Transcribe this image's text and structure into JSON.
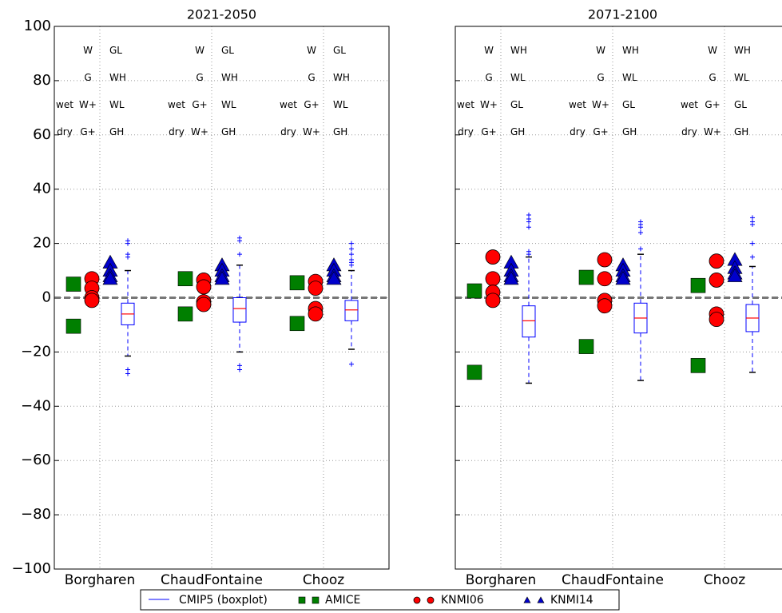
{
  "chart_data": [
    {
      "type": "box",
      "title": "2021-2050",
      "categories": [
        "Borgharen",
        "ChaudFontaine",
        "Chooz"
      ],
      "ylim": [
        -100,
        100
      ],
      "yticks": [
        {
          "value": -100,
          "label": "−100"
        },
        {
          "value": -80,
          "label": "−80"
        },
        {
          "value": -60,
          "label": "−60"
        },
        {
          "value": -40,
          "label": "−40"
        },
        {
          "value": -20,
          "label": "−20"
        },
        0,
        20,
        40,
        60,
        80,
        100
      ],
      "grid": true,
      "hline": 0,
      "series": [
        {
          "name": "AMICE",
          "color": "#007f00",
          "marker": "square",
          "values": [
            [
              5,
              -10.5
            ],
            [
              7,
              -6
            ],
            [
              5.5,
              -9.5
            ]
          ]
        },
        {
          "name": "KNMI06",
          "color": "#ff0000",
          "marker": "circle",
          "values": [
            [
              7,
              3.5,
              0,
              -1
            ],
            [
              6.5,
              4,
              -1.5,
              -2.5
            ],
            [
              6,
              3.5,
              -4,
              -6
            ]
          ]
        },
        {
          "name": "KNMI14",
          "color": "#0000cc",
          "marker": "triangle",
          "values": [
            [
              13,
              10,
              8,
              7
            ],
            [
              12,
              10,
              8,
              7
            ],
            [
              12,
              10,
              8,
              7
            ]
          ]
        }
      ],
      "boxes": {
        "name": "CMIP5 (boxplot)",
        "color": "#0000ff",
        "median_color": "#ff0000",
        "median": [
          -6,
          -4,
          -4.5
        ],
        "q1": [
          -10,
          -9,
          -8.5
        ],
        "q3": [
          -2,
          0,
          -1
        ],
        "whislo": [
          -21.5,
          -20,
          -19
        ],
        "whishi": [
          10,
          12,
          10
        ],
        "fliers": [
          [
            21,
            20,
            16,
            15,
            -26.5,
            -28
          ],
          [
            22,
            21,
            16,
            -25,
            -26.5
          ],
          [
            20,
            18,
            16,
            14,
            13,
            12,
            -24.5
          ]
        ]
      },
      "labels": [
        {
          "a": [
            "W",
            "G",
            "W+",
            "G+"
          ],
          "b": [
            "wet",
            "dry"
          ],
          "c": [
            "GL",
            "WH",
            "WL",
            "GH"
          ]
        },
        {
          "a": [
            "W",
            "G",
            "G+",
            "W+"
          ],
          "b": [
            "wet",
            "dry"
          ],
          "c": [
            "GL",
            "WH",
            "WL",
            "GH"
          ]
        },
        {
          "a": [
            "W",
            "G",
            "G+",
            "W+"
          ],
          "b": [
            "wet",
            "dry"
          ],
          "c": [
            "GL",
            "WH",
            "WL",
            "GH"
          ]
        }
      ]
    },
    {
      "type": "box",
      "title": "2071-2100",
      "categories": [
        "Borgharen",
        "ChaudFontaine",
        "Chooz"
      ],
      "ylim": [
        -100,
        100
      ],
      "yticks": [
        -100,
        -80,
        -60,
        -40,
        -20,
        0,
        20,
        40,
        60,
        80,
        100
      ],
      "grid": true,
      "hline": 0,
      "series": [
        {
          "color": "#007f00",
          "marker": "square",
          "values": [
            [
              2.5,
              -27.5
            ],
            [
              7.5,
              -18
            ],
            [
              4.5,
              -25
            ]
          ]
        },
        {
          "color": "#ff0000",
          "marker": "circle",
          "values": [
            [
              15,
              7,
              2,
              -1
            ],
            [
              14,
              7,
              -1,
              -3
            ],
            [
              13.5,
              6.5,
              -6,
              -8
            ]
          ]
        },
        {
          "color": "#0000cc",
          "marker": "triangle",
          "values": [
            [
              13,
              10,
              8,
              7
            ],
            [
              12,
              10,
              8,
              7
            ],
            [
              14,
              11,
              9,
              8
            ]
          ]
        }
      ],
      "boxes": {
        "color": "#0000ff",
        "median_color": "#ff0000",
        "median": [
          -8.5,
          -7.5,
          -7.5
        ],
        "q1": [
          -14.5,
          -13,
          -12.5
        ],
        "q3": [
          -3,
          -2,
          -2.5
        ],
        "whislo": [
          -31.5,
          -30.5,
          -27.5
        ],
        "whishi": [
          15,
          16,
          11.5
        ],
        "fliers": [
          [
            30.5,
            29,
            28,
            26,
            17,
            16
          ],
          [
            28,
            27,
            26,
            24,
            18
          ],
          [
            29.5,
            28,
            27,
            20,
            15
          ]
        ]
      },
      "labels": [
        {
          "a": [
            "W",
            "G",
            "W+",
            "G+"
          ],
          "b": [
            "wet",
            "dry"
          ],
          "c": [
            "WH",
            "WL",
            "GL",
            "GH"
          ]
        },
        {
          "a": [
            "W",
            "G",
            "W+",
            "G+"
          ],
          "b": [
            "wet",
            "dry"
          ],
          "c": [
            "WH",
            "WL",
            "GL",
            "GH"
          ]
        },
        {
          "a": [
            "W",
            "G",
            "G+",
            "W+"
          ],
          "b": [
            "wet",
            "dry"
          ],
          "c": [
            "WH",
            "WL",
            "GL",
            "GH"
          ]
        }
      ]
    }
  ]
}
